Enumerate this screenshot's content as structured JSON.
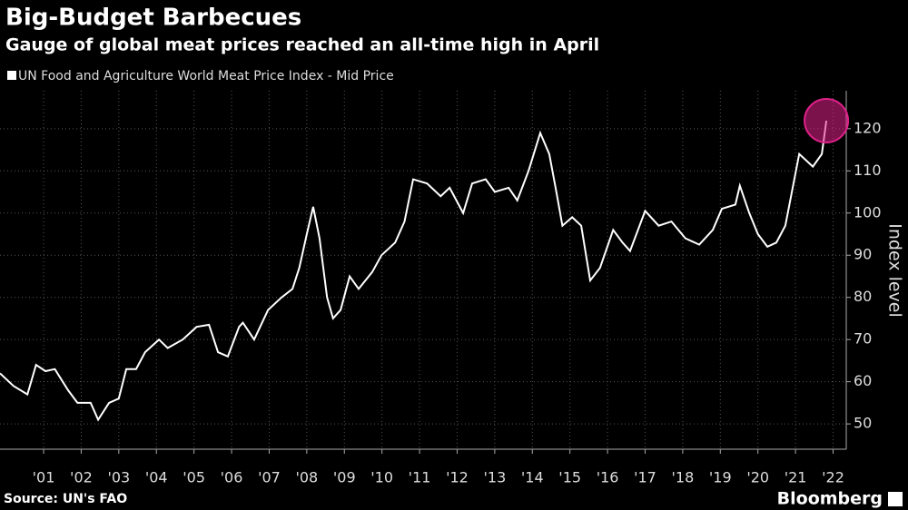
{
  "chart_data": {
    "type": "line",
    "title": "Big-Budget Barbecues",
    "subtitle": "Gauge of global meat prices reached an all-time high in April",
    "y_label": "Index level",
    "source": "Source: UN's FAO",
    "brand": "Bloomberg",
    "x": [
      2000.34,
      2000.7,
      2001.07,
      2001.3,
      2001.55,
      2001.8,
      2002.15,
      2002.4,
      2002.75,
      2002.95,
      2003.24,
      2003.5,
      2003.7,
      2003.96,
      2004.2,
      2004.57,
      2004.8,
      2005.2,
      2005.57,
      2005.9,
      2006.14,
      2006.4,
      2006.7,
      2006.8,
      2007.1,
      2007.47,
      2007.83,
      2008.12,
      2008.3,
      2008.5,
      2008.67,
      2008.84,
      2009.04,
      2009.2,
      2009.4,
      2009.64,
      2009.88,
      2010.24,
      2010.49,
      2010.85,
      2011.1,
      2011.33,
      2011.7,
      2012.06,
      2012.3,
      2012.66,
      2012.9,
      2013.26,
      2013.5,
      2013.87,
      2014.1,
      2014.4,
      2014.71,
      2014.95,
      2015.12,
      2015.3,
      2015.56,
      2015.8,
      2016.04,
      2016.3,
      2016.65,
      2016.9,
      2017.1,
      2017.5,
      2017.86,
      2018.2,
      2018.57,
      2018.94,
      2019.3,
      2019.54,
      2019.9,
      2020.02,
      2020.27,
      2020.5,
      2020.75,
      2020.99,
      2021.23,
      2021.6,
      2021.96,
      2022.2,
      2022.32
    ],
    "series": [
      {
        "name": "UN Food and Agriculture World Meat Price Index - Mid Price",
        "color": "#ffffff",
        "values": [
          62,
          59,
          57,
          64,
          62.5,
          63,
          58,
          55,
          55,
          51,
          55,
          56,
          63,
          63,
          67,
          70,
          68,
          70,
          73,
          73.5,
          67,
          66,
          73,
          74,
          70,
          77,
          80,
          82,
          87,
          95,
          101.5,
          94,
          80,
          75,
          77,
          85,
          82,
          86,
          90,
          93,
          98,
          108,
          107,
          104,
          106,
          100,
          107,
          108,
          105,
          106,
          103,
          110,
          119,
          114,
          106,
          97,
          99,
          97,
          84,
          87,
          96,
          93,
          91,
          100.5,
          97,
          98,
          94,
          92.5,
          96,
          101,
          102,
          106.5,
          100,
          95,
          92,
          93,
          97,
          114,
          111,
          114,
          121.9
        ]
      }
    ],
    "highlight_color": "#e0218a",
    "xlim": [
      2000.34,
      2022.85
    ],
    "xticks": [
      {
        "value": 2001.5,
        "label": "'01"
      },
      {
        "value": 2002.5,
        "label": "'02"
      },
      {
        "value": 2003.5,
        "label": "'03"
      },
      {
        "value": 2004.5,
        "label": "'04"
      },
      {
        "value": 2005.5,
        "label": "'05"
      },
      {
        "value": 2006.5,
        "label": "'06"
      },
      {
        "value": 2007.5,
        "label": "'07"
      },
      {
        "value": 2008.5,
        "label": "'08"
      },
      {
        "value": 2009.5,
        "label": "'09"
      },
      {
        "value": 2010.5,
        "label": "'10"
      },
      {
        "value": 2011.5,
        "label": "'11"
      },
      {
        "value": 2012.5,
        "label": "'12"
      },
      {
        "value": 2013.5,
        "label": "'13"
      },
      {
        "value": 2014.5,
        "label": "'14"
      },
      {
        "value": 2015.5,
        "label": "'15"
      },
      {
        "value": 2016.5,
        "label": "'16"
      },
      {
        "value": 2017.5,
        "label": "'17"
      },
      {
        "value": 2018.5,
        "label": "'18"
      },
      {
        "value": 2019.5,
        "label": "'19"
      },
      {
        "value": 2020.5,
        "label": "'20"
      },
      {
        "value": 2021.5,
        "label": "'21"
      },
      {
        "value": 2022.5,
        "label": "'22"
      }
    ],
    "ylim": [
      44,
      129
    ],
    "yticks": [
      50,
      60,
      70,
      80,
      90,
      100,
      110,
      120
    ],
    "grid": true
  }
}
